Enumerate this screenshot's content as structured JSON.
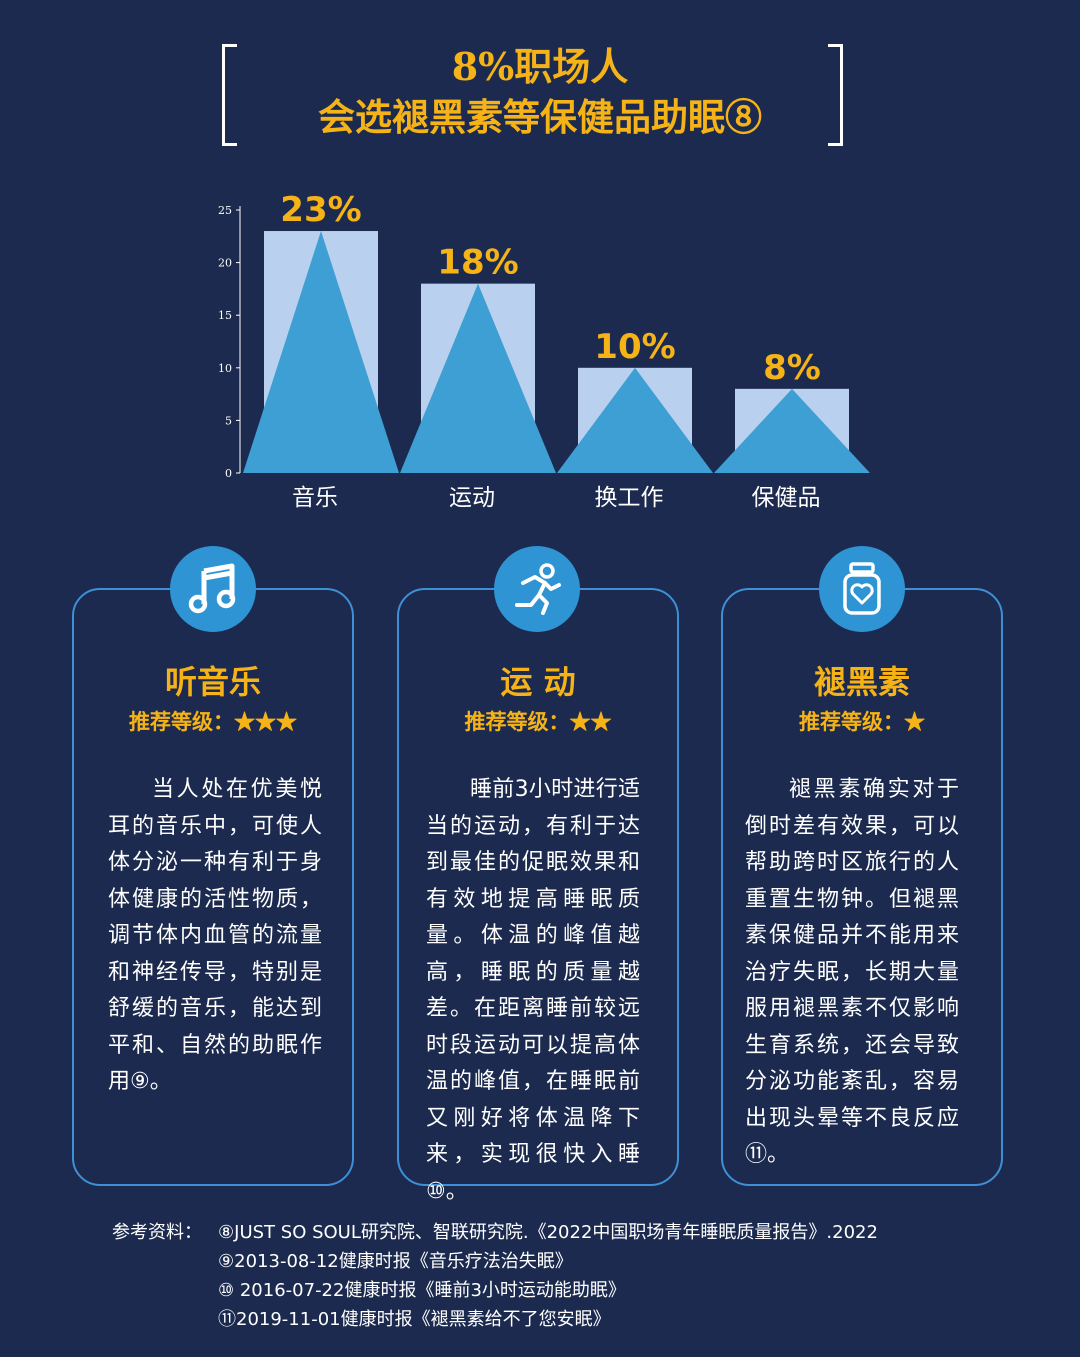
{
  "title": {
    "line1": "8%职场人",
    "line2": "会选褪黑素等保健品助眠⑧"
  },
  "chart_data": {
    "type": "bar",
    "categories": [
      "音乐",
      "运动",
      "换工作",
      "保健品"
    ],
    "values": [
      23,
      18,
      10,
      8
    ],
    "data_labels": [
      "23%",
      "18%",
      "10%",
      "8%"
    ],
    "yticks": [
      0,
      5,
      10,
      15,
      20,
      25
    ],
    "ylim": [
      0,
      25
    ],
    "grid": false,
    "colors": {
      "bar": "#b9d1ef",
      "triangle": "#3d9fd3",
      "label": "#f5b318",
      "axis": "#ffffff"
    }
  },
  "cards": [
    {
      "icon": "music-note-icon",
      "title": "听音乐",
      "level": "推荐等级：★★★",
      "body": "当人处在优美悦耳的音乐中，可使人体分泌一种有利于身体健康的活性物质，调节体内血管的流量和神经传导，特别是舒缓的音乐，能达到平和、自然的助眠作用⑨。"
    },
    {
      "icon": "running-person-icon",
      "title": "运 动",
      "level": "推荐等级：★★",
      "body": "睡前3小时进行适当的运动，有利于达到最佳的促眠效果和有效地提高睡眠质量。体温的峰值越高，睡眠的质量越差。在距离睡前较远时段运动可以提高体温的峰值，在睡眠前又刚好将体温降下来，实现很快入睡⑩。"
    },
    {
      "icon": "supplement-bottle-icon",
      "title": "褪黑素",
      "level": "推荐等级：★",
      "body": "褪黑素确实对于倒时差有效果，可以帮助跨时区旅行的人重置生物钟。但褪黑素保健品并不能用来治疗失眠，长期大量服用褪黑素不仅影响生育系统，还会导致分泌功能紊乱，容易出现头晕等不良反应⑪。"
    }
  ],
  "references": {
    "label": "参考资料：",
    "items": [
      "⑧JUST SO SOUL研究院、智联研究院.《2022中国职场青年睡眠质量报告》.2022",
      "⑨2013-08-12健康时报《音乐疗法治失眠》",
      "⑩ 2016-07-22健康时报《睡前3小时运动能助眠》",
      "⑪2019-11-01健康时报《褪黑素给不了您安眠》"
    ]
  }
}
